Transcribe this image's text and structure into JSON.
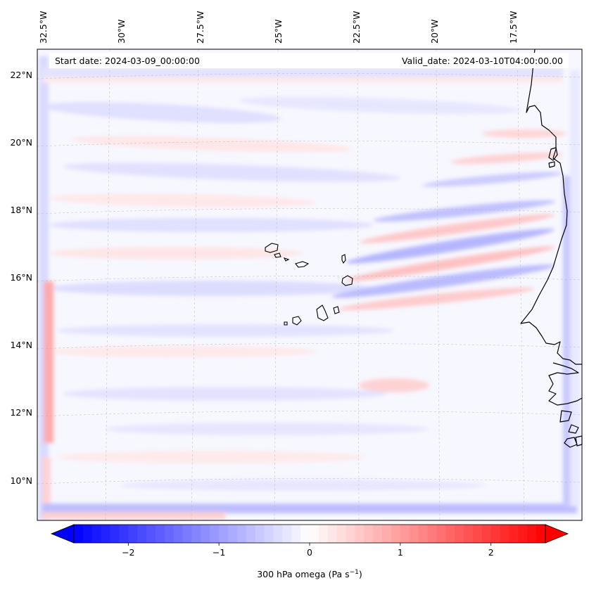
{
  "header": {
    "start_date": "Start date: 2024-03-09_00:00:00",
    "valid_date": "Valid_date: 2024-03-10T04:00:00.00"
  },
  "map": {
    "lon_labels": [
      "32.5°W",
      "30°W",
      "27.5°W",
      "25°W",
      "22.5°W",
      "20°W",
      "17.5°W"
    ],
    "lat_labels": [
      "22°N",
      "20°N",
      "18°N",
      "16°N",
      "14°N",
      "12°N",
      "10°N"
    ],
    "gridlines": true,
    "colormap": "bwr",
    "colors": {
      "negative": "#0000ff",
      "zero": "#ffffff",
      "positive": "#ff0000",
      "coastline": "#000000"
    }
  },
  "colorbar": {
    "min": -2.6,
    "max": 2.6,
    "ticks": [
      -2,
      -1,
      0,
      1,
      2
    ],
    "tick_labels": [
      "−2",
      "−1",
      "0",
      "1",
      "2"
    ],
    "label_prefix": "300 hPa omega (Pa s",
    "label_exponent": "−1",
    "label_suffix": ")"
  }
}
